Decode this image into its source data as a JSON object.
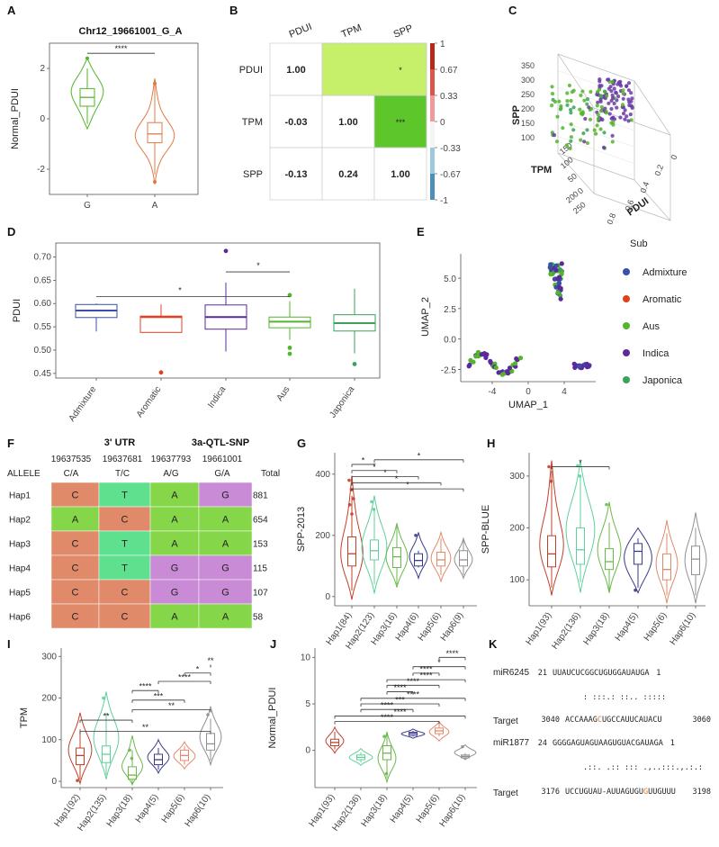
{
  "panels": {
    "A": {
      "label": "A",
      "title": "Chr12_19661001_G_A",
      "ylabel": "Normal_PDUI",
      "sig": "****",
      "yticks": [
        "2",
        "0",
        "-2"
      ],
      "ylim": [
        -3.0,
        3.0
      ],
      "ytick_values": [
        2,
        0,
        -2
      ],
      "categories": [
        "G",
        "A"
      ]
    },
    "B": {
      "label": "B",
      "vars": [
        "PDUI",
        "TPM",
        "SPP"
      ],
      "lower": [
        [
          "PDUI",
          "TPM",
          "-0.03"
        ],
        [
          "PDUI",
          "SPP",
          "-0.13"
        ],
        [
          "TPM",
          "SPP",
          "0.24"
        ]
      ],
      "diag": "1.00",
      "upper_sig": [
        "*",
        "***"
      ],
      "colorbar": [
        "1",
        "0.67",
        "0.33",
        "0",
        "-0.33",
        "-0.67",
        "-1"
      ]
    },
    "C": {
      "label": "C",
      "axes": [
        "SPP",
        "TPM",
        "PDUI"
      ],
      "spp_ticks": [
        "350",
        "300",
        "250",
        "200",
        "150",
        "100"
      ],
      "tpm_ticks": [
        "150",
        "100",
        "50",
        "0",
        "250",
        "200"
      ],
      "pdui_ticks": [
        "0.8",
        "0.6",
        "0.4",
        "0.2",
        "0"
      ]
    },
    "D": {
      "label": "D",
      "ylabel": "PDUI",
      "yticks": [
        "0.70",
        "0.65",
        "0.60",
        "0.55",
        "0.50",
        "0.45"
      ],
      "ytick_values": [
        0.7,
        0.65,
        0.6,
        0.55,
        0.5,
        0.45
      ],
      "ylim": [
        0.44,
        0.73
      ],
      "categories": [
        "Admixture",
        "Aromatic",
        "Indica",
        "Aus",
        "Japonica"
      ],
      "colors": [
        "#3a4fa8",
        "#e0401e",
        "#5a2a9a",
        "#52b52b",
        "#3aa35a"
      ],
      "sig": [
        "*",
        "*"
      ]
    },
    "E": {
      "label": "E",
      "xlabel": "UMAP_1",
      "ylabel": "UMAP_2",
      "xticks": [
        "-4",
        "0",
        "4"
      ],
      "yticks": [
        "5.0",
        "2.5",
        "0.0",
        "-2.5"
      ],
      "legend_title": "Sub",
      "legend": [
        {
          "name": "Admixture",
          "color": "#3a4fa8"
        },
        {
          "name": "Aromatic",
          "color": "#e0401e"
        },
        {
          "name": "Aus",
          "color": "#52b52b"
        },
        {
          "name": "Indica",
          "color": "#5a2a9a"
        },
        {
          "name": "Japonica",
          "color": "#3aa35a"
        }
      ]
    },
    "F": {
      "label": "F",
      "group_headers": [
        "3' UTR",
        "3a-QTL-SNP"
      ],
      "positions": [
        "19637535",
        "19637681",
        "19637793",
        "19661001"
      ],
      "allele_label": "ALLELE",
      "alleles": [
        "C/A",
        "T/C",
        "A/G",
        "G/A"
      ],
      "total_label": "Total",
      "rows": [
        {
          "hap": "Hap1",
          "cells": [
            "C",
            "T",
            "A",
            "G"
          ],
          "total": "881"
        },
        {
          "hap": "Hap2",
          "cells": [
            "A",
            "C",
            "A",
            "A"
          ],
          "total": "654"
        },
        {
          "hap": "Hap3",
          "cells": [
            "C",
            "T",
            "A",
            "A"
          ],
          "total": "153"
        },
        {
          "hap": "Hap4",
          "cells": [
            "C",
            "T",
            "G",
            "G"
          ],
          "total": "115"
        },
        {
          "hap": "Hap5",
          "cells": [
            "C",
            "C",
            "G",
            "G"
          ],
          "total": "107"
        },
        {
          "hap": "Hap6",
          "cells": [
            "C",
            "C",
            "A",
            "A"
          ],
          "total": "58"
        }
      ],
      "base_colors": {
        "C": "#e08a6a",
        "T": "#5fe08e",
        "A": "#86d64a",
        "G": "#c98ad6"
      }
    },
    "G": {
      "label": "G",
      "ylabel": "SPP-2013",
      "yticks": [
        "400",
        "200",
        "0"
      ],
      "ytick_values": [
        400,
        200,
        0
      ],
      "ylim": [
        -30,
        470
      ],
      "categories": [
        "Hap1(84)",
        "Hap2(123)",
        "Hap3(16)",
        "Hap4(6)",
        "Hap5(6)",
        "Hap6(9)"
      ],
      "sig": [
        "*",
        "*",
        "*",
        "*",
        "*",
        "*"
      ]
    },
    "H": {
      "label": "H",
      "ylabel": "SPP-BLUE",
      "yticks": [
        "300",
        "200",
        "100"
      ],
      "ytick_values": [
        300,
        200,
        100
      ],
      "ylim": [
        50,
        345
      ],
      "categories": [
        "Hap1(93)",
        "Hap2(136)",
        "Hap3(18)",
        "Hap4(5)",
        "Hap5(6)",
        "Hap6(10)"
      ],
      "sig": [
        "*"
      ]
    },
    "I": {
      "label": "I",
      "ylabel": "TPM",
      "yticks": [
        "300",
        "200",
        "100",
        "0"
      ],
      "ytick_values": [
        300,
        200,
        100,
        0
      ],
      "ylim": [
        -15,
        320
      ],
      "categories": [
        "Hap1(92)",
        "Hap2(135)",
        "Hap3(18)",
        "Hap4(5)",
        "Hap5(6)",
        "Hap6(10)"
      ],
      "sig": [
        "**",
        "**",
        "**",
        "***",
        "****",
        "****",
        "*",
        "**"
      ]
    },
    "J": {
      "label": "J",
      "ylabel": "Normal_PDUI",
      "yticks": [
        "10",
        "5",
        "0"
      ],
      "ytick_values": [
        10,
        5,
        0
      ],
      "ylim": [
        -4,
        11
      ],
      "categories": [
        "Hap1(93)",
        "Hap2(136)",
        "Hap3(18)",
        "Hap4(5)",
        "Hap5(6)",
        "Hap6(10)"
      ],
      "sig": [
        "****",
        "*",
        "****",
        "****",
        "****",
        "****",
        "****",
        "***",
        "****",
        "****",
        "****"
      ]
    },
    "K": {
      "label": "K",
      "lines": [
        {
          "name": "miR6245",
          "start": "21",
          "seq": "UUAUCUCGGCUGUGGAUAUGA",
          "end": "1"
        },
        {
          "match": ": :::.: ::.. :::::"
        },
        {
          "name": "Target",
          "start": "3040",
          "seq": "ACCAAAGCUGCCAUUCAUACU",
          "end": "3060",
          "hl": 7
        },
        {
          "name": "miR1877",
          "start": "24",
          "seq": "GGGGAGUAGUAAGUGUACGAUAGA",
          "end": "1"
        },
        {
          "match": ".::. .:: ::: .,..:::.,.:.:"
        },
        {
          "name": "Target",
          "start": "3176",
          "seq": "UCCUGUAU-AUUAGUGUGUUGUUU",
          "end": "3198",
          "hl": 17
        }
      ]
    }
  }
}
